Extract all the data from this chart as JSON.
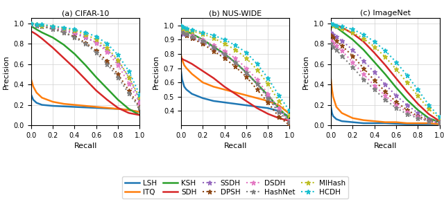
{
  "subplots": [
    {
      "title": "(a) CIFAR-10",
      "xlabel": "Recall",
      "ylabel": "Precision",
      "ylim": [
        0.0,
        1.05
      ],
      "xlim": [
        0.0,
        1.0
      ],
      "yticks": [
        0.0,
        0.2,
        0.4,
        0.6,
        0.8,
        1.0
      ]
    },
    {
      "title": "(b) NUS-WIDE",
      "xlabel": "Recall",
      "ylabel": "Precision",
      "ylim": [
        0.3,
        1.05
      ],
      "xlim": [
        0.0,
        1.0
      ],
      "yticks": [
        0.4,
        0.5,
        0.6,
        0.7,
        0.8,
        0.9,
        1.0
      ]
    },
    {
      "title": "(c) ImageNet",
      "xlabel": "Recall",
      "ylabel": "Precision",
      "ylim": [
        0.0,
        1.05
      ],
      "xlim": [
        0.0,
        1.0
      ],
      "yticks": [
        0.0,
        0.2,
        0.4,
        0.6,
        0.8,
        1.0
      ]
    }
  ],
  "methods": [
    "LSH",
    "ITQ",
    "KSH",
    "SDH",
    "SSDH",
    "DPSH",
    "DSDH",
    "HashNet",
    "MIHash",
    "HCDH"
  ],
  "colors": {
    "LSH": "#1f77b4",
    "ITQ": "#ff7f0e",
    "KSH": "#2ca02c",
    "SDH": "#d62728",
    "SSDH": "#9467bd",
    "DPSH": "#8B4513",
    "DSDH": "#e377c2",
    "HashNet": "#7f7f7f",
    "MIHash": "#bcbd22",
    "HCDH": "#17becf"
  },
  "curves": {
    "cifar10": {
      "LSH": {
        "x": [
          0.0,
          0.02,
          0.05,
          0.1,
          0.2,
          0.3,
          0.4,
          0.5,
          0.6,
          0.7,
          0.8,
          0.9,
          1.0
        ],
        "y": [
          0.3,
          0.25,
          0.22,
          0.2,
          0.19,
          0.185,
          0.18,
          0.175,
          0.17,
          0.165,
          0.16,
          0.15,
          0.13
        ]
      },
      "ITQ": {
        "x": [
          0.0,
          0.02,
          0.05,
          0.1,
          0.2,
          0.3,
          0.4,
          0.5,
          0.6,
          0.7,
          0.8,
          0.9,
          1.0
        ],
        "y": [
          0.45,
          0.38,
          0.32,
          0.27,
          0.23,
          0.21,
          0.2,
          0.19,
          0.18,
          0.17,
          0.16,
          0.15,
          0.13
        ]
      },
      "KSH": {
        "x": [
          0.0,
          0.02,
          0.05,
          0.1,
          0.2,
          0.3,
          0.4,
          0.5,
          0.6,
          0.7,
          0.8,
          0.9,
          1.0
        ],
        "y": [
          0.97,
          0.96,
          0.94,
          0.91,
          0.86,
          0.79,
          0.7,
          0.59,
          0.47,
          0.36,
          0.25,
          0.16,
          0.1
        ]
      },
      "SDH": {
        "x": [
          0.0,
          0.02,
          0.05,
          0.1,
          0.2,
          0.3,
          0.4,
          0.5,
          0.6,
          0.7,
          0.8,
          0.9,
          1.0
        ],
        "y": [
          0.92,
          0.91,
          0.89,
          0.85,
          0.76,
          0.66,
          0.56,
          0.45,
          0.34,
          0.25,
          0.17,
          0.12,
          0.1
        ]
      },
      "SSDH": {
        "x": [
          0.0,
          0.05,
          0.1,
          0.2,
          0.3,
          0.4,
          0.5,
          0.6,
          0.7,
          0.8,
          0.9,
          1.0
        ],
        "y": [
          0.99,
          0.98,
          0.97,
          0.95,
          0.93,
          0.9,
          0.86,
          0.81,
          0.74,
          0.63,
          0.47,
          0.25
        ]
      },
      "DPSH": {
        "x": [
          0.0,
          0.05,
          0.1,
          0.2,
          0.3,
          0.4,
          0.5,
          0.6,
          0.7,
          0.8,
          0.9,
          1.0
        ],
        "y": [
          0.99,
          0.98,
          0.97,
          0.95,
          0.91,
          0.87,
          0.81,
          0.73,
          0.63,
          0.5,
          0.34,
          0.18
        ]
      },
      "DSDH": {
        "x": [
          0.0,
          0.05,
          0.1,
          0.2,
          0.3,
          0.4,
          0.5,
          0.6,
          0.7,
          0.8,
          0.9,
          1.0
        ],
        "y": [
          0.99,
          0.98,
          0.97,
          0.96,
          0.94,
          0.91,
          0.87,
          0.81,
          0.72,
          0.59,
          0.41,
          0.22
        ]
      },
      "HashNet": {
        "x": [
          0.0,
          0.05,
          0.1,
          0.2,
          0.3,
          0.4,
          0.5,
          0.6,
          0.7,
          0.8,
          0.9,
          1.0
        ],
        "y": [
          0.99,
          0.98,
          0.97,
          0.94,
          0.91,
          0.86,
          0.8,
          0.71,
          0.6,
          0.47,
          0.31,
          0.17
        ]
      },
      "MIHash": {
        "x": [
          0.0,
          0.05,
          0.1,
          0.2,
          0.3,
          0.4,
          0.5,
          0.6,
          0.7,
          0.8,
          0.9,
          1.0
        ],
        "y": [
          1.0,
          0.99,
          0.98,
          0.97,
          0.95,
          0.93,
          0.89,
          0.84,
          0.76,
          0.64,
          0.47,
          0.27
        ]
      },
      "HCDH": {
        "x": [
          0.0,
          0.05,
          0.1,
          0.2,
          0.3,
          0.4,
          0.5,
          0.6,
          0.7,
          0.8,
          0.9,
          1.0
        ],
        "y": [
          1.0,
          0.99,
          0.99,
          0.97,
          0.96,
          0.94,
          0.91,
          0.87,
          0.8,
          0.69,
          0.53,
          0.3
        ]
      }
    },
    "nuswide": {
      "LSH": {
        "x": [
          0.0,
          0.01,
          0.03,
          0.05,
          0.1,
          0.2,
          0.3,
          0.4,
          0.5,
          0.6,
          0.7,
          0.8,
          0.9,
          1.0
        ],
        "y": [
          0.68,
          0.62,
          0.57,
          0.55,
          0.52,
          0.49,
          0.47,
          0.46,
          0.45,
          0.44,
          0.43,
          0.42,
          0.4,
          0.36
        ]
      },
      "ITQ": {
        "x": [
          0.0,
          0.01,
          0.03,
          0.05,
          0.1,
          0.2,
          0.3,
          0.4,
          0.5,
          0.6,
          0.7,
          0.8,
          0.9,
          1.0
        ],
        "y": [
          0.79,
          0.76,
          0.72,
          0.7,
          0.66,
          0.6,
          0.57,
          0.55,
          0.53,
          0.51,
          0.49,
          0.47,
          0.44,
          0.38
        ]
      },
      "KSH": {
        "x": [
          0.0,
          0.02,
          0.05,
          0.1,
          0.2,
          0.3,
          0.4,
          0.5,
          0.6,
          0.7,
          0.8,
          0.9,
          1.0
        ],
        "y": [
          1.0,
          0.98,
          0.96,
          0.94,
          0.9,
          0.85,
          0.8,
          0.74,
          0.67,
          0.59,
          0.51,
          0.42,
          0.34
        ]
      },
      "SDH": {
        "x": [
          0.0,
          0.02,
          0.05,
          0.1,
          0.2,
          0.3,
          0.4,
          0.5,
          0.6,
          0.7,
          0.8,
          0.9,
          1.0
        ],
        "y": [
          0.77,
          0.76,
          0.75,
          0.73,
          0.68,
          0.63,
          0.57,
          0.52,
          0.47,
          0.42,
          0.38,
          0.35,
          0.33
        ]
      },
      "SSDH": {
        "x": [
          0.0,
          0.02,
          0.05,
          0.1,
          0.2,
          0.3,
          0.4,
          0.5,
          0.6,
          0.7,
          0.8,
          0.9,
          1.0
        ],
        "y": [
          0.95,
          0.94,
          0.93,
          0.91,
          0.88,
          0.84,
          0.79,
          0.74,
          0.67,
          0.59,
          0.5,
          0.4,
          0.33
        ]
      },
      "DPSH": {
        "x": [
          0.0,
          0.02,
          0.05,
          0.1,
          0.2,
          0.3,
          0.4,
          0.5,
          0.6,
          0.7,
          0.8,
          0.9,
          1.0
        ],
        "y": [
          0.96,
          0.95,
          0.93,
          0.91,
          0.87,
          0.82,
          0.77,
          0.71,
          0.64,
          0.55,
          0.46,
          0.36,
          0.3
        ]
      },
      "DSDH": {
        "x": [
          0.0,
          0.02,
          0.05,
          0.1,
          0.2,
          0.3,
          0.4,
          0.5,
          0.6,
          0.7,
          0.8,
          0.9,
          1.0
        ],
        "y": [
          0.96,
          0.95,
          0.94,
          0.93,
          0.9,
          0.86,
          0.82,
          0.77,
          0.7,
          0.62,
          0.52,
          0.42,
          0.33
        ]
      },
      "HashNet": {
        "x": [
          0.0,
          0.02,
          0.05,
          0.1,
          0.2,
          0.3,
          0.4,
          0.5,
          0.6,
          0.7,
          0.8,
          0.9,
          1.0
        ],
        "y": [
          0.96,
          0.95,
          0.94,
          0.92,
          0.89,
          0.85,
          0.8,
          0.74,
          0.67,
          0.59,
          0.49,
          0.39,
          0.32
        ]
      },
      "MIHash": {
        "x": [
          0.0,
          0.02,
          0.05,
          0.1,
          0.2,
          0.3,
          0.4,
          0.5,
          0.6,
          0.7,
          0.8,
          0.9,
          1.0
        ],
        "y": [
          0.99,
          0.98,
          0.97,
          0.96,
          0.94,
          0.91,
          0.87,
          0.83,
          0.77,
          0.69,
          0.59,
          0.47,
          0.37
        ]
      },
      "HCDH": {
        "x": [
          0.0,
          0.02,
          0.05,
          0.1,
          0.2,
          0.3,
          0.4,
          0.5,
          0.6,
          0.7,
          0.8,
          0.9,
          1.0
        ],
        "y": [
          1.0,
          0.99,
          0.98,
          0.97,
          0.95,
          0.93,
          0.9,
          0.86,
          0.81,
          0.73,
          0.63,
          0.51,
          0.4
        ]
      }
    },
    "imagenet": {
      "LSH": {
        "x": [
          0.0,
          0.01,
          0.02,
          0.05,
          0.1,
          0.2,
          0.3,
          0.4,
          0.5,
          0.6,
          0.7,
          0.8,
          0.9,
          1.0
        ],
        "y": [
          0.18,
          0.12,
          0.09,
          0.06,
          0.04,
          0.03,
          0.02,
          0.02,
          0.02,
          0.015,
          0.01,
          0.01,
          0.01,
          0.01
        ]
      },
      "ITQ": {
        "x": [
          0.0,
          0.01,
          0.02,
          0.05,
          0.1,
          0.2,
          0.3,
          0.4,
          0.5,
          0.6,
          0.7,
          0.8,
          0.9,
          1.0
        ],
        "y": [
          0.45,
          0.35,
          0.28,
          0.18,
          0.12,
          0.07,
          0.05,
          0.04,
          0.03,
          0.03,
          0.02,
          0.02,
          0.02,
          0.01
        ]
      },
      "KSH": {
        "x": [
          0.0,
          0.02,
          0.05,
          0.1,
          0.2,
          0.3,
          0.4,
          0.5,
          0.6,
          0.7,
          0.8,
          0.9,
          1.0
        ],
        "y": [
          1.0,
          0.98,
          0.96,
          0.92,
          0.84,
          0.74,
          0.62,
          0.5,
          0.37,
          0.25,
          0.15,
          0.07,
          0.03
        ]
      },
      "SDH": {
        "x": [
          0.0,
          0.02,
          0.05,
          0.1,
          0.2,
          0.3,
          0.4,
          0.5,
          0.6,
          0.7,
          0.8,
          0.9,
          1.0
        ],
        "y": [
          1.0,
          0.99,
          0.98,
          0.96,
          0.9,
          0.82,
          0.71,
          0.59,
          0.46,
          0.33,
          0.21,
          0.11,
          0.04
        ]
      },
      "SSDH": {
        "x": [
          0.0,
          0.02,
          0.05,
          0.1,
          0.2,
          0.3,
          0.4,
          0.5,
          0.6,
          0.7,
          0.8,
          0.9,
          1.0
        ],
        "y": [
          0.91,
          0.89,
          0.87,
          0.83,
          0.74,
          0.63,
          0.52,
          0.4,
          0.29,
          0.2,
          0.12,
          0.06,
          0.03
        ]
      },
      "DPSH": {
        "x": [
          0.0,
          0.02,
          0.05,
          0.1,
          0.2,
          0.3,
          0.4,
          0.5,
          0.6,
          0.7,
          0.8,
          0.9,
          1.0
        ],
        "y": [
          0.88,
          0.86,
          0.83,
          0.78,
          0.68,
          0.56,
          0.44,
          0.33,
          0.23,
          0.15,
          0.09,
          0.05,
          0.02
        ]
      },
      "DSDH": {
        "x": [
          0.0,
          0.02,
          0.05,
          0.1,
          0.2,
          0.3,
          0.4,
          0.5,
          0.6,
          0.7,
          0.8,
          0.9,
          1.0
        ],
        "y": [
          0.83,
          0.81,
          0.78,
          0.73,
          0.62,
          0.5,
          0.39,
          0.29,
          0.2,
          0.13,
          0.08,
          0.04,
          0.02
        ]
      },
      "HashNet": {
        "x": [
          0.0,
          0.02,
          0.05,
          0.1,
          0.2,
          0.3,
          0.4,
          0.5,
          0.6,
          0.7,
          0.8,
          0.9,
          1.0
        ],
        "y": [
          0.8,
          0.77,
          0.74,
          0.68,
          0.57,
          0.45,
          0.35,
          0.25,
          0.17,
          0.11,
          0.07,
          0.04,
          0.02
        ]
      },
      "MIHash": {
        "x": [
          0.0,
          0.02,
          0.05,
          0.1,
          0.2,
          0.3,
          0.4,
          0.5,
          0.6,
          0.7,
          0.8,
          0.9,
          1.0
        ],
        "y": [
          0.99,
          0.98,
          0.97,
          0.95,
          0.91,
          0.85,
          0.77,
          0.67,
          0.55,
          0.42,
          0.29,
          0.16,
          0.07
        ]
      },
      "HCDH": {
        "x": [
          0.0,
          0.02,
          0.05,
          0.1,
          0.2,
          0.3,
          0.4,
          0.5,
          0.6,
          0.7,
          0.8,
          0.9,
          1.0
        ],
        "y": [
          1.0,
          0.99,
          0.98,
          0.97,
          0.94,
          0.89,
          0.82,
          0.73,
          0.62,
          0.49,
          0.35,
          0.2,
          0.08
        ]
      }
    }
  },
  "legend": {
    "row1": [
      "LSH",
      "KSH",
      "SSDH",
      "DSDH",
      "MIHash"
    ],
    "row2": [
      "ITQ",
      "SDH",
      "DPSH",
      "HashNet",
      "HCDH"
    ]
  },
  "marker_methods": [
    "SSDH",
    "DPSH",
    "DSDH",
    "HashNet",
    "MIHash",
    "HCDH"
  ],
  "solid_methods": [
    "LSH",
    "ITQ",
    "KSH",
    "SDH"
  ]
}
